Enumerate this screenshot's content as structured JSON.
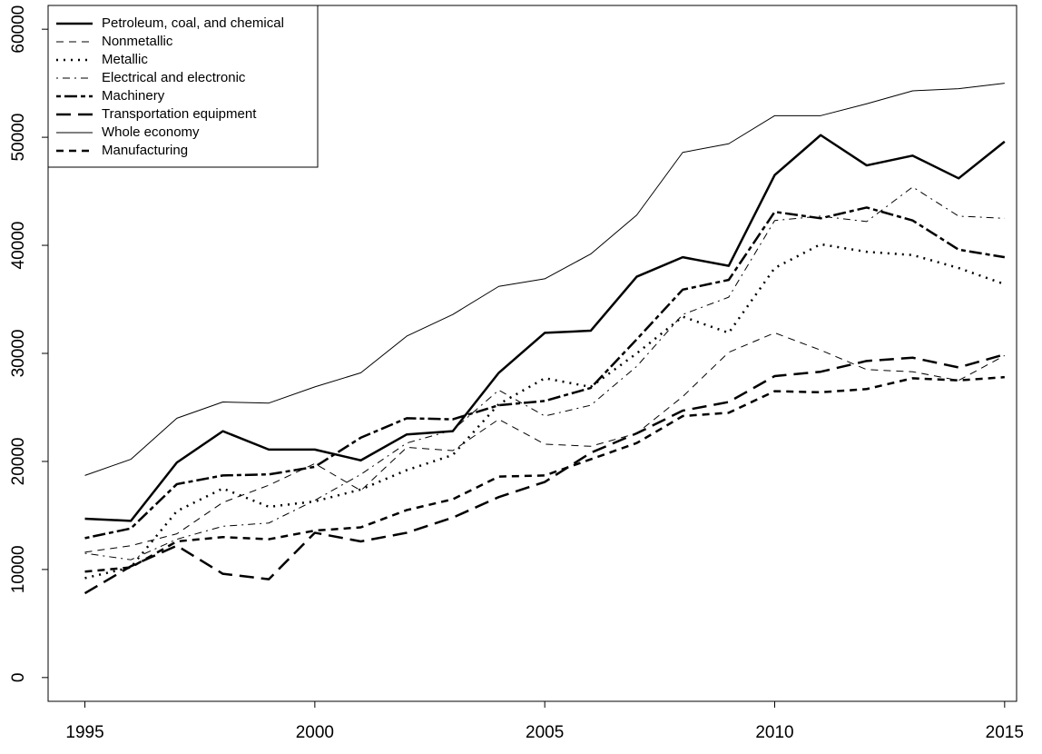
{
  "chart_data": {
    "type": "line",
    "x": [
      1995,
      1996,
      1997,
      1998,
      1999,
      2000,
      2001,
      2002,
      2003,
      2004,
      2005,
      2006,
      2007,
      2008,
      2009,
      2010,
      2011,
      2012,
      2013,
      2014,
      2015
    ],
    "xlim": [
      1994.2,
      2015.26
    ],
    "xticks": [
      1995,
      2000,
      2005,
      2010,
      2015
    ],
    "ylim": [
      -2200,
      62200
    ],
    "yticks": [
      0,
      10000,
      20000,
      30000,
      40000,
      50000,
      60000
    ],
    "legend": "top-left",
    "series": [
      {
        "name": "Petroleum, coal, and chemical",
        "color": "#000000",
        "linestyle": "solid",
        "linewidth": 2.5,
        "values": [
          14700,
          14500,
          19900,
          22800,
          21100,
          21100,
          20100,
          22500,
          22800,
          28200,
          31900,
          32100,
          37100,
          38900,
          38100,
          46500,
          50200,
          47400,
          48300,
          46200,
          49600
        ]
      },
      {
        "name": "Nonmetallic",
        "color": "#000000",
        "linestyle": "dashed",
        "linewidth": 1,
        "values": [
          11600,
          12200,
          13300,
          16200,
          17800,
          19800,
          17300,
          21300,
          21000,
          23900,
          21600,
          21400,
          22600,
          26000,
          30100,
          31900,
          30300,
          28500,
          28300,
          27500,
          29800
        ]
      },
      {
        "name": "Metallic",
        "color": "#000000",
        "linestyle": "dotted",
        "linewidth": 2.5,
        "values": [
          9200,
          10200,
          15400,
          17500,
          15800,
          16300,
          17400,
          19200,
          20600,
          25300,
          27700,
          26900,
          30000,
          33400,
          31900,
          37900,
          40100,
          39400,
          39100,
          37900,
          36400
        ]
      },
      {
        "name": "Electrical and electronic",
        "color": "#000000",
        "linestyle": "dotdash",
        "linewidth": 1,
        "values": [
          11500,
          10900,
          12800,
          14000,
          14300,
          16400,
          18800,
          21700,
          22900,
          26600,
          24200,
          25200,
          28800,
          33600,
          35200,
          42300,
          42700,
          42200,
          45400,
          42700,
          42500
        ]
      },
      {
        "name": "Machinery",
        "color": "#000000",
        "linestyle": "twodash",
        "linewidth": 2.5,
        "values": [
          12900,
          13800,
          17900,
          18700,
          18800,
          19500,
          22200,
          24000,
          23900,
          25200,
          25600,
          26800,
          31300,
          35900,
          36800,
          43100,
          42500,
          43500,
          42300,
          39600,
          38900
        ]
      },
      {
        "name": "Transportation equipment",
        "color": "#000000",
        "linestyle": "longdash",
        "linewidth": 2.5,
        "values": [
          7800,
          10300,
          12200,
          9600,
          9100,
          13400,
          12600,
          13400,
          14800,
          16700,
          18100,
          20800,
          22600,
          24700,
          25500,
          27900,
          28300,
          29300,
          29600,
          28700,
          29900
        ]
      },
      {
        "name": "Whole economy",
        "color": "#000000",
        "linestyle": "solid",
        "linewidth": 1,
        "values": [
          18700,
          20200,
          24000,
          25500,
          25400,
          26900,
          28200,
          31600,
          33600,
          36200,
          36900,
          39200,
          42800,
          48600,
          49400,
          52000,
          52000,
          53100,
          54300,
          54500,
          55000
        ]
      },
      {
        "name": "Manufacturing",
        "color": "#000000",
        "linestyle": "dashed",
        "linewidth": 2.5,
        "values": [
          9800,
          10200,
          12600,
          13000,
          12800,
          13600,
          13900,
          15500,
          16500,
          18600,
          18700,
          20200,
          21700,
          24200,
          24500,
          26500,
          26400,
          26700,
          27700,
          27500,
          27800
        ]
      }
    ]
  }
}
